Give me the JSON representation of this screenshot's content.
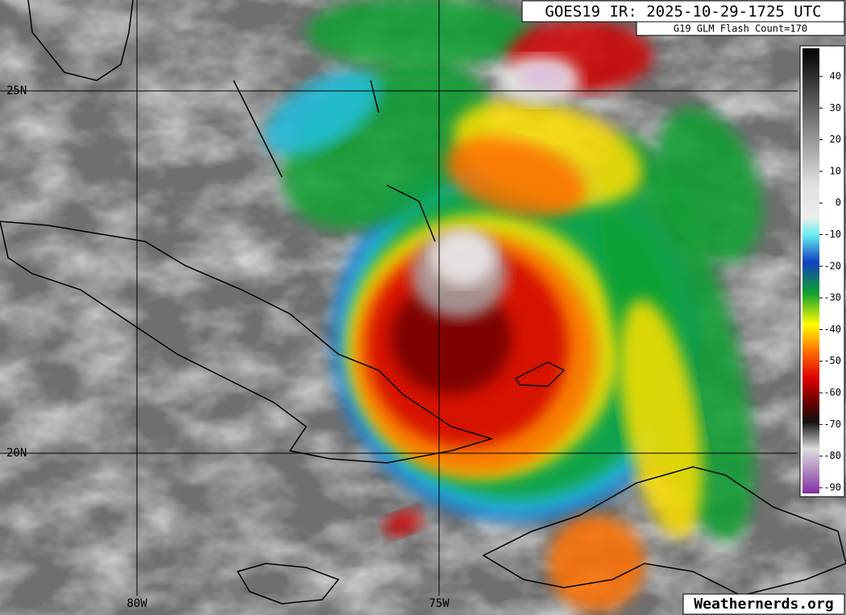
{
  "header": {
    "title": "GOES19 IR: 2025-10-29-1725 UTC",
    "subtitle": "G19 GLM Flash Count=170"
  },
  "map": {
    "latitude_labels": [
      "25N",
      "20N"
    ],
    "longitude_labels": [
      "80W",
      "75W"
    ]
  },
  "colorbar": {
    "ticks": [
      40,
      30,
      20,
      10,
      0,
      -10,
      -20,
      -30,
      -40,
      -50,
      -60,
      -70,
      -80,
      -90
    ]
  },
  "footer": {
    "credit": "Weathernerds.org"
  }
}
